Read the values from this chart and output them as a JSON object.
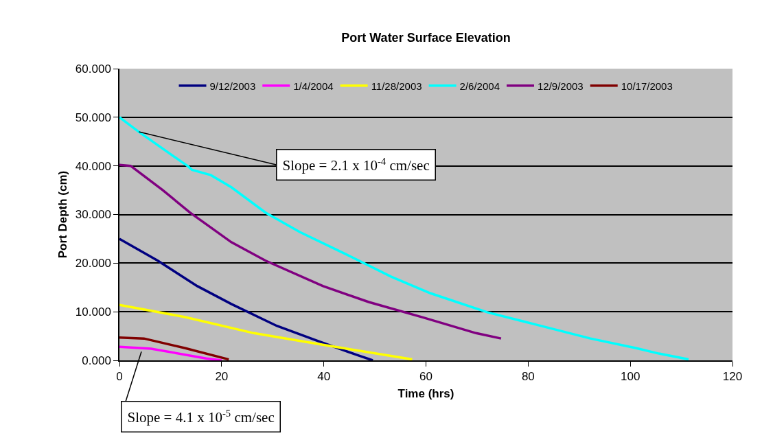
{
  "chart_data": {
    "type": "line",
    "title": "Port Water Surface Elevation",
    "xlabel": "Time (hrs)",
    "ylabel": "Port Depth (cm)",
    "xlim": [
      0,
      120
    ],
    "xticks": [
      0,
      20,
      40,
      60,
      80,
      100,
      120
    ],
    "ylim": [
      0,
      60
    ],
    "yticks": [
      {
        "value": 0,
        "label": "0.000"
      },
      {
        "value": 10,
        "label": "10.000"
      },
      {
        "value": 20,
        "label": "20.000"
      },
      {
        "value": 30,
        "label": "30.000"
      },
      {
        "value": 40,
        "label": "40.000"
      },
      {
        "value": 50,
        "label": "50.000"
      },
      {
        "value": 60,
        "label": "60.000"
      }
    ],
    "grid": "y",
    "legend": "top",
    "marker": "none",
    "line_style": "solid",
    "series": [
      {
        "name": "9/12/2003",
        "color": "#000080",
        "x": [
          0,
          7.5,
          15.2,
          21.9,
          30.8,
          38.8,
          46.5,
          49.6
        ],
        "values": [
          25.0,
          20.5,
          15.3,
          11.6,
          7.1,
          4.0,
          1.1,
          0.0
        ]
      },
      {
        "name": "1/4/2004",
        "color": "#ff00ff",
        "x": [
          0,
          6.2,
          17.0,
          20.0
        ],
        "values": [
          2.8,
          2.4,
          0.4,
          0.0
        ]
      },
      {
        "name": "11/28/2003",
        "color": "#ffff00",
        "x": [
          0,
          12.9,
          26.3,
          39.8,
          57.3
        ],
        "values": [
          11.4,
          8.9,
          5.6,
          3.2,
          0.2
        ]
      },
      {
        "name": "2/6/2004",
        "color": "#00ffff",
        "x": [
          0,
          3.8,
          13.3,
          14.2,
          17.9,
          21.9,
          28.6,
          35.3,
          44.2,
          53.2,
          60.9,
          72.0,
          81.0,
          92.2,
          101.2,
          105.6,
          111.4
        ],
        "values": [
          50.0,
          47.0,
          40.0,
          39.2,
          38.1,
          35.6,
          30.4,
          26.4,
          21.9,
          17.2,
          13.8,
          9.9,
          7.5,
          4.5,
          2.5,
          1.4,
          0.2
        ]
      },
      {
        "name": "12/9/2003",
        "color": "#800080",
        "x": [
          0,
          2.2,
          8.5,
          13.8,
          21.9,
          28.6,
          39.8,
          48.8,
          59.5,
          69.8,
          74.7
        ],
        "values": [
          40.2,
          40.0,
          35.0,
          30.4,
          24.3,
          20.5,
          15.3,
          12.0,
          8.8,
          5.6,
          4.5
        ]
      },
      {
        "name": "10/17/2003",
        "color": "#800000",
        "x": [
          0,
          4.8,
          12.9,
          21.4
        ],
        "values": [
          4.7,
          4.5,
          2.5,
          0.2
        ]
      }
    ],
    "annotations": [
      {
        "text": "Slope = 2.1 x 10$^{-4}$ cm/sec",
        "x": 3.8,
        "y": 47.0
      },
      {
        "text": "Slope = 4.1 x 10$^{-5}$ cm/sec",
        "x": 4.3,
        "y": 1.8
      }
    ]
  }
}
